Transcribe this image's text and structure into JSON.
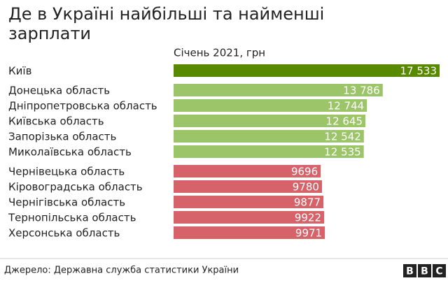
{
  "chart_data": {
    "type": "bar",
    "orientation": "horizontal",
    "title": "Де в Україні найбільші та найменші зарплати",
    "subtitle": "Січень 2021, грн",
    "categories": [
      "Київ",
      "Донецька область",
      "Дніпропетровська область",
      "Київська область",
      "Запорізька область",
      "Миколаївська область",
      "Чернівецька область",
      "Кіровоградська область",
      "Чернігівська область",
      "Тернопільська область",
      "Херсонська область"
    ],
    "values": [
      17533,
      13786,
      12744,
      12645,
      12542,
      12535,
      9696,
      9780,
      9877,
      9922,
      9971
    ],
    "value_labels": [
      "17 533",
      "13 786",
      "12 744",
      "12 645",
      "12 542",
      "12 535",
      "9696",
      "9780",
      "9877",
      "9922",
      "9971"
    ],
    "colors": [
      "#588a00",
      "#9cc56a",
      "#9cc56a",
      "#9cc56a",
      "#9cc56a",
      "#9cc56a",
      "#d6636a",
      "#d6636a",
      "#d6636a",
      "#d6636a",
      "#d6636a"
    ],
    "source": "Джерело: Державна служба статистики України",
    "logo": [
      "B",
      "B",
      "C"
    ]
  }
}
